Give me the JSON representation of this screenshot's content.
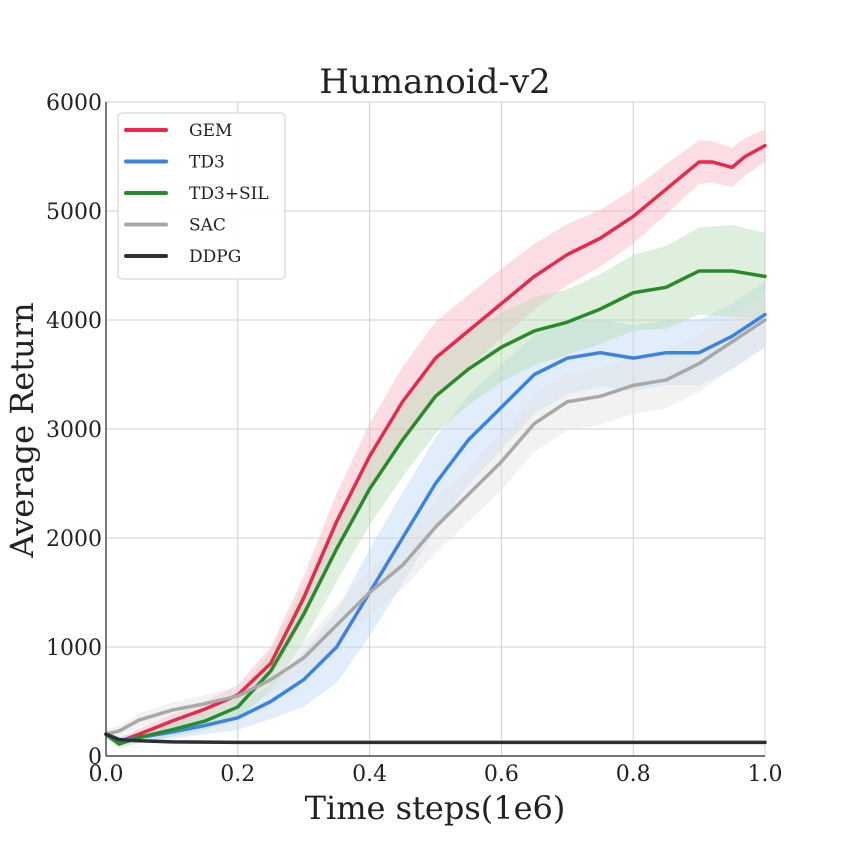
{
  "chart_data": {
    "type": "line",
    "title": "Humanoid-v2",
    "xlabel": "Time steps(1e6)",
    "ylabel": "Average Return",
    "xlim": [
      0.0,
      1.0
    ],
    "ylim": [
      0,
      6000
    ],
    "xticks": [
      "0.0",
      "0.2",
      "0.4",
      "0.6",
      "0.8",
      "1.0"
    ],
    "yticks": [
      "0",
      "1000",
      "2000",
      "3000",
      "4000",
      "5000",
      "6000"
    ],
    "grid": true,
    "legend_position": "top-left",
    "series": [
      {
        "name": "GEM",
        "color": "#e8294d",
        "band_color": "#f7b3c1",
        "x": [
          0.0,
          0.02,
          0.05,
          0.1,
          0.15,
          0.2,
          0.25,
          0.3,
          0.35,
          0.4,
          0.45,
          0.5,
          0.55,
          0.6,
          0.65,
          0.7,
          0.75,
          0.8,
          0.85,
          0.9,
          0.92,
          0.95,
          0.97,
          1.0
        ],
        "y": [
          200,
          130,
          200,
          320,
          430,
          560,
          850,
          1450,
          2150,
          2750,
          3250,
          3650,
          3900,
          4150,
          4400,
          4600,
          4750,
          4950,
          5200,
          5450,
          5450,
          5400,
          5500,
          5600
        ],
        "spread": [
          40,
          40,
          50,
          60,
          70,
          90,
          150,
          200,
          260,
          300,
          320,
          330,
          330,
          320,
          300,
          280,
          260,
          250,
          230,
          200,
          190,
          180,
          170,
          150
        ]
      },
      {
        "name": "TD3",
        "color": "#3b83e0",
        "band_color": "#bcd6f4",
        "x": [
          0.0,
          0.02,
          0.05,
          0.1,
          0.15,
          0.2,
          0.25,
          0.3,
          0.35,
          0.4,
          0.45,
          0.5,
          0.55,
          0.6,
          0.65,
          0.7,
          0.75,
          0.8,
          0.85,
          0.9,
          0.95,
          1.0
        ],
        "y": [
          200,
          140,
          170,
          220,
          280,
          350,
          500,
          700,
          1000,
          1500,
          2000,
          2500,
          2900,
          3200,
          3500,
          3650,
          3700,
          3650,
          3700,
          3700,
          3850,
          4050
        ],
        "spread": [
          40,
          40,
          40,
          60,
          80,
          110,
          160,
          250,
          330,
          400,
          420,
          420,
          410,
          390,
          360,
          330,
          310,
          300,
          300,
          300,
          300,
          300
        ]
      },
      {
        "name": "TD3+SIL",
        "color": "#2a8a2a",
        "band_color": "#b8dcb4",
        "x": [
          0.0,
          0.02,
          0.05,
          0.1,
          0.15,
          0.2,
          0.25,
          0.3,
          0.35,
          0.4,
          0.45,
          0.5,
          0.55,
          0.6,
          0.65,
          0.7,
          0.75,
          0.8,
          0.85,
          0.9,
          0.95,
          1.0
        ],
        "y": [
          200,
          110,
          170,
          240,
          320,
          450,
          780,
          1300,
          1900,
          2450,
          2900,
          3300,
          3550,
          3750,
          3900,
          3980,
          4100,
          4250,
          4300,
          4450,
          4450,
          4400
        ],
        "spread": [
          40,
          40,
          50,
          60,
          80,
          110,
          180,
          250,
          300,
          330,
          340,
          340,
          330,
          320,
          310,
          300,
          320,
          350,
          380,
          400,
          420,
          400
        ]
      },
      {
        "name": "SAC",
        "color": "#a8a8a8",
        "band_color": "#e3e3e3",
        "x": [
          0.0,
          0.02,
          0.05,
          0.1,
          0.15,
          0.2,
          0.25,
          0.3,
          0.35,
          0.4,
          0.45,
          0.5,
          0.55,
          0.6,
          0.65,
          0.7,
          0.75,
          0.8,
          0.85,
          0.9,
          0.95,
          1.0
        ],
        "y": [
          200,
          230,
          330,
          420,
          480,
          550,
          700,
          900,
          1200,
          1500,
          1750,
          2100,
          2400,
          2700,
          3050,
          3250,
          3300,
          3400,
          3450,
          3600,
          3800,
          4000
        ],
        "spread": [
          40,
          50,
          60,
          70,
          80,
          90,
          120,
          150,
          180,
          200,
          220,
          240,
          250,
          260,
          260,
          260,
          260,
          260,
          260,
          260,
          250,
          250
        ]
      },
      {
        "name": "DDPG",
        "color": "#2b2f36",
        "band_color": "#c8c8c8",
        "x": [
          0.0,
          0.02,
          0.05,
          0.1,
          0.2,
          0.3,
          0.4,
          0.5,
          0.6,
          0.7,
          0.8,
          0.9,
          1.0
        ],
        "y": [
          200,
          150,
          140,
          130,
          125,
          125,
          125,
          125,
          125,
          125,
          125,
          125,
          125
        ],
        "spread": [
          20,
          15,
          10,
          8,
          5,
          5,
          5,
          5,
          5,
          5,
          5,
          5,
          5
        ]
      }
    ]
  }
}
